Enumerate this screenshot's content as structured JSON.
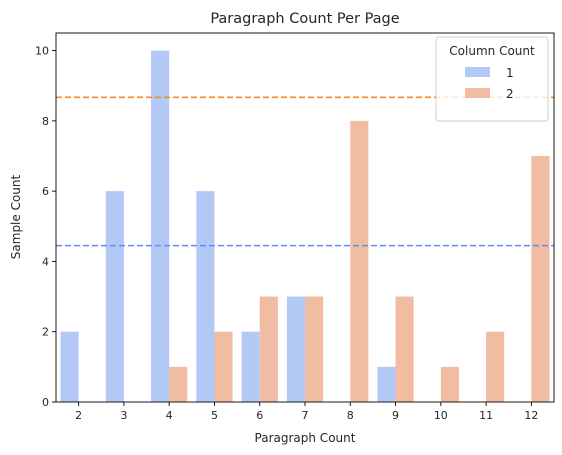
{
  "chart_data": {
    "type": "bar",
    "title": "Paragraph Count Per Page",
    "xlabel": "Paragraph Count",
    "ylabel": "Sample Count",
    "categories": [
      "2",
      "3",
      "4",
      "5",
      "6",
      "7",
      "8",
      "9",
      "10",
      "11",
      "12"
    ],
    "series": [
      {
        "name": "1",
        "color": "#b3c9f5",
        "values": [
          2,
          6,
          10,
          6,
          2,
          3,
          0,
          1,
          0,
          0,
          0
        ]
      },
      {
        "name": "2",
        "color": "#f0bca2",
        "values": [
          0,
          0,
          1,
          2,
          3,
          3,
          8,
          3,
          1,
          2,
          7
        ]
      }
    ],
    "reference_lines": [
      {
        "value": 8.67,
        "color": "#f28c28",
        "style": "dashed"
      },
      {
        "value": 4.45,
        "color": "#5b8ff0",
        "style": "dashed"
      }
    ],
    "ylim": [
      0,
      10.5
    ],
    "yticks": [
      0,
      2,
      4,
      6,
      8,
      10
    ],
    "legend": {
      "title": "Column Count",
      "position": "top-right"
    },
    "grid": false
  }
}
